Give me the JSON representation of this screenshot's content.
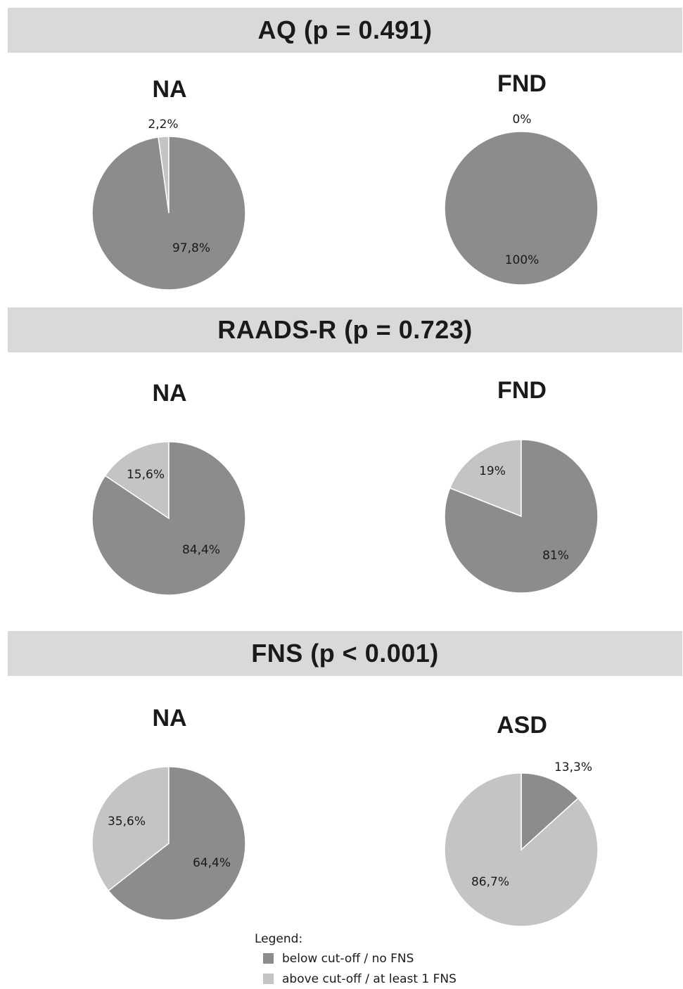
{
  "colors": {
    "below": "#8c8c8c",
    "above": "#c4c4c4",
    "header_bg": "#d9d9d9"
  },
  "legend": {
    "title": "Legend:",
    "below_label": "below cut-off / no FNS",
    "above_label": "above cut-off / at least 1 FNS"
  },
  "chart_data": [
    {
      "type": "pie",
      "title": "AQ (p = 0.491)",
      "groups": [
        {
          "name": "NA",
          "slices": [
            {
              "category": "above",
              "value": 2.2,
              "label": "2,2%"
            },
            {
              "category": "below",
              "value": 97.8,
              "label": "97,8%"
            }
          ]
        },
        {
          "name": "FND",
          "slices": [
            {
              "category": "above",
              "value": 0,
              "label": "0%"
            },
            {
              "category": "below",
              "value": 100,
              "label": "100%"
            }
          ]
        }
      ]
    },
    {
      "type": "pie",
      "title": "RAADS-R (p = 0.723)",
      "groups": [
        {
          "name": "NA",
          "slices": [
            {
              "category": "above",
              "value": 15.6,
              "label": "15,6%"
            },
            {
              "category": "below",
              "value": 84.4,
              "label": "84,4%"
            }
          ]
        },
        {
          "name": "FND",
          "slices": [
            {
              "category": "above",
              "value": 19,
              "label": "19%"
            },
            {
              "category": "below",
              "value": 81,
              "label": "81%"
            }
          ]
        }
      ]
    },
    {
      "type": "pie",
      "title": "FNS (p < 0.001)",
      "groups": [
        {
          "name": "NA",
          "slices": [
            {
              "category": "above",
              "value": 35.6,
              "label": "35,6%"
            },
            {
              "category": "below",
              "value": 64.4,
              "label": "64,4%"
            }
          ]
        },
        {
          "name": "ASD",
          "slices": [
            {
              "category": "below",
              "value": 13.3,
              "label": "13,3%"
            },
            {
              "category": "above",
              "value": 86.7,
              "label": "86,7%"
            }
          ]
        }
      ]
    }
  ]
}
